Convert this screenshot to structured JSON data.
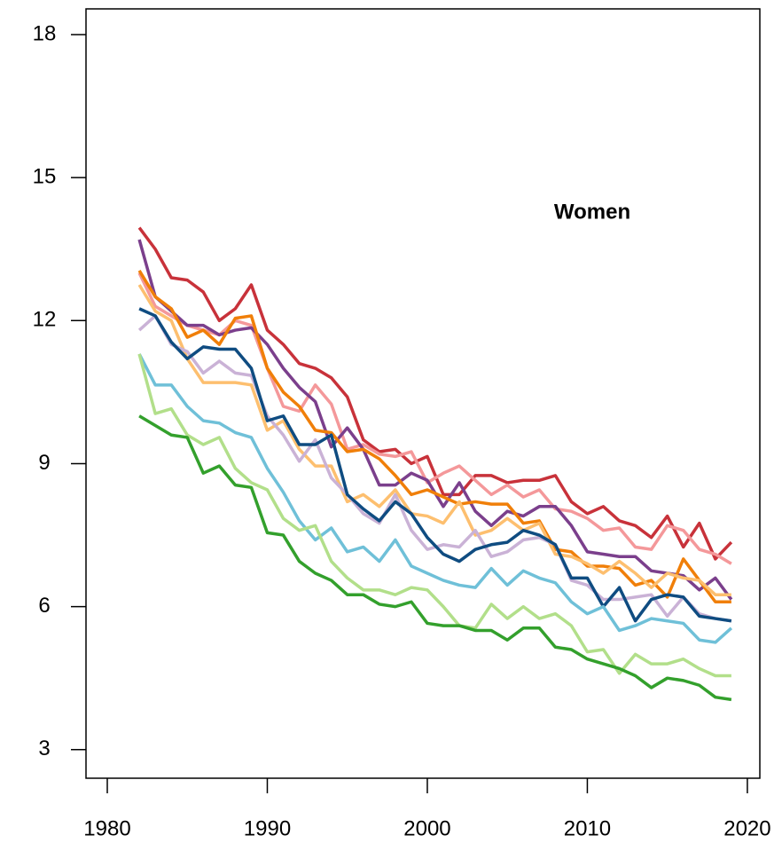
{
  "chart_data": {
    "type": "line",
    "annotation": "Women",
    "x": [
      1982,
      1983,
      1984,
      1985,
      1986,
      1987,
      1988,
      1989,
      1990,
      1991,
      1992,
      1993,
      1994,
      1995,
      1996,
      1997,
      1998,
      1999,
      2000,
      2001,
      2002,
      2003,
      2004,
      2005,
      2006,
      2007,
      2008,
      2009,
      2010,
      2011,
      2012,
      2013,
      2014,
      2015,
      2016,
      2017,
      2018,
      2019
    ],
    "xlim": [
      1978.67,
      2020.78
    ],
    "xticks": [
      1980,
      1990,
      2000,
      2010,
      2020
    ],
    "ylim": [
      2.4,
      18.54
    ],
    "yticks": [
      3,
      6,
      9,
      12,
      15,
      18
    ],
    "series": [
      {
        "color": "#c8323a",
        "values": [
          13.95,
          13.5,
          12.9,
          12.85,
          12.6,
          12.0,
          12.25,
          12.75,
          11.8,
          11.5,
          11.1,
          11.0,
          10.8,
          10.4,
          9.5,
          9.25,
          9.3,
          9.0,
          9.15,
          8.35,
          8.35,
          8.75,
          8.75,
          8.6,
          8.65,
          8.65,
          8.75,
          8.2,
          7.95,
          8.1,
          7.8,
          7.7,
          7.45,
          7.9,
          7.25,
          7.75,
          7.0,
          7.35
        ]
      },
      {
        "color": "#f4989a",
        "values": [
          13.0,
          12.3,
          12.1,
          11.9,
          11.8,
          11.7,
          12.0,
          11.9,
          11.0,
          10.2,
          10.1,
          10.65,
          10.25,
          9.3,
          9.4,
          9.2,
          9.15,
          9.25,
          8.6,
          8.8,
          8.95,
          8.65,
          8.35,
          8.55,
          8.3,
          8.45,
          8.05,
          8.0,
          7.85,
          7.6,
          7.65,
          7.25,
          7.2,
          7.7,
          7.6,
          7.2,
          7.1,
          6.9
        ]
      },
      {
        "color": "#7b3f8c",
        "values": [
          13.7,
          12.5,
          12.2,
          11.9,
          11.9,
          11.7,
          11.8,
          11.85,
          11.5,
          11.0,
          10.6,
          10.3,
          9.35,
          9.75,
          9.3,
          8.55,
          8.55,
          8.8,
          8.65,
          8.1,
          8.6,
          8.0,
          7.7,
          8.0,
          7.9,
          8.1,
          8.1,
          7.7,
          7.15,
          7.1,
          7.05,
          7.05,
          6.75,
          6.7,
          6.65,
          6.35,
          6.6,
          6.15
        ]
      },
      {
        "color": "#f07f09",
        "values": [
          13.05,
          12.5,
          12.25,
          11.65,
          11.8,
          11.5,
          12.05,
          12.1,
          11.0,
          10.5,
          10.2,
          9.7,
          9.65,
          9.25,
          9.3,
          9.1,
          8.75,
          8.35,
          8.45,
          8.3,
          8.15,
          8.2,
          8.15,
          8.15,
          7.75,
          7.8,
          7.2,
          7.15,
          6.85,
          6.85,
          6.8,
          6.45,
          6.55,
          6.2,
          7.0,
          6.55,
          6.1,
          6.1
        ]
      },
      {
        "color": "#fdbf6f",
        "values": [
          12.75,
          12.2,
          12.0,
          11.2,
          10.7,
          10.7,
          10.7,
          10.65,
          9.7,
          9.9,
          9.3,
          8.95,
          8.95,
          8.2,
          8.35,
          8.1,
          8.45,
          7.95,
          7.9,
          7.75,
          8.2,
          7.5,
          7.6,
          7.85,
          7.6,
          7.75,
          7.1,
          7.05,
          6.9,
          6.7,
          6.95,
          6.7,
          6.4,
          6.7,
          6.6,
          6.55,
          6.25,
          6.25
        ]
      },
      {
        "color": "#cab2d6",
        "values": [
          11.8,
          12.1,
          11.5,
          11.35,
          10.9,
          11.15,
          10.9,
          10.85,
          10.0,
          9.6,
          9.05,
          9.5,
          8.7,
          8.35,
          7.95,
          7.75,
          8.35,
          7.6,
          7.2,
          7.3,
          7.25,
          7.6,
          7.05,
          7.15,
          7.4,
          7.45,
          7.3,
          6.55,
          6.45,
          6.15,
          6.15,
          6.2,
          6.25,
          5.8,
          6.2,
          5.85,
          5.75,
          5.7
        ]
      },
      {
        "color": "#0f4c81",
        "values": [
          12.25,
          12.1,
          11.55,
          11.2,
          11.45,
          11.4,
          11.4,
          11.0,
          9.9,
          10.0,
          9.4,
          9.4,
          9.6,
          8.35,
          8.05,
          7.8,
          8.2,
          7.95,
          7.45,
          7.1,
          6.95,
          7.2,
          7.3,
          7.35,
          7.6,
          7.5,
          7.3,
          6.6,
          6.6,
          6.0,
          6.4,
          5.7,
          6.15,
          6.25,
          6.2,
          5.8,
          5.75,
          5.7
        ]
      },
      {
        "color": "#6fc0d8",
        "values": [
          11.3,
          10.65,
          10.65,
          10.2,
          9.9,
          9.85,
          9.65,
          9.55,
          8.9,
          8.4,
          7.8,
          7.4,
          7.65,
          7.15,
          7.25,
          6.95,
          7.4,
          6.85,
          6.7,
          6.55,
          6.45,
          6.4,
          6.8,
          6.45,
          6.75,
          6.6,
          6.5,
          6.1,
          5.85,
          6.0,
          5.5,
          5.6,
          5.75,
          5.7,
          5.65,
          5.3,
          5.25,
          5.55
        ]
      },
      {
        "color": "#b2df8a",
        "values": [
          11.3,
          10.05,
          10.15,
          9.6,
          9.4,
          9.55,
          8.9,
          8.6,
          8.45,
          7.85,
          7.6,
          7.7,
          6.95,
          6.6,
          6.35,
          6.35,
          6.25,
          6.4,
          6.35,
          6.0,
          5.6,
          5.55,
          6.05,
          5.75,
          6.0,
          5.75,
          5.85,
          5.6,
          5.05,
          5.1,
          4.6,
          5.0,
          4.8,
          4.8,
          4.9,
          4.7,
          4.55,
          4.55
        ]
      },
      {
        "color": "#33a02c",
        "values": [
          10.0,
          9.8,
          9.6,
          9.55,
          8.8,
          8.95,
          8.55,
          8.5,
          7.55,
          7.5,
          6.95,
          6.7,
          6.55,
          6.25,
          6.25,
          6.05,
          6.0,
          6.1,
          5.65,
          5.6,
          5.6,
          5.5,
          5.5,
          5.3,
          5.55,
          5.55,
          5.15,
          5.1,
          4.9,
          4.8,
          4.7,
          4.55,
          4.3,
          4.5,
          4.45,
          4.35,
          4.1,
          4.05
        ]
      }
    ]
  }
}
